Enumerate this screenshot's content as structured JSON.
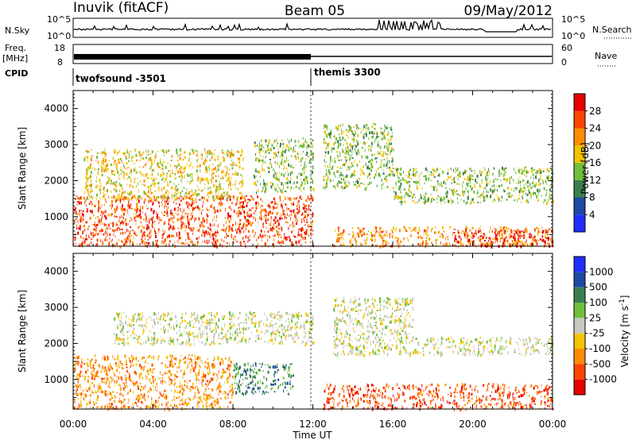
{
  "header": {
    "radar": "Inuvik (fitACF)",
    "beam": "Beam 05",
    "date": "09/May/2012"
  },
  "strips": {
    "nsky_label": "N.Sky",
    "nsky_ticks": [
      "10^5",
      "10^0"
    ],
    "nsearch_label": "N.Search",
    "nsearch_ticks": [
      "10^5",
      "10^0"
    ],
    "freq_label": "Freq.",
    "freq_unit": "[MHz]",
    "freq_ticks": [
      "18",
      "8"
    ],
    "nave_label": "Nave",
    "nave_ticks": [
      "60",
      "0"
    ],
    "cpid_label": "CPID",
    "cpid_segments": [
      {
        "name": "twofsound -3501",
        "start_hour": 0
      },
      {
        "name": "themis 3300",
        "start_hour": 12
      }
    ]
  },
  "chart_data": [
    {
      "type": "heatmap",
      "title": "",
      "quantity": "Power",
      "ylabel": "Slant Range [km]",
      "xlabel": "",
      "ylim": [
        180,
        4500
      ],
      "yticks": [
        1000,
        2000,
        3000,
        4000
      ],
      "xlim": [
        0,
        24
      ],
      "colorbar_label": "Power [dB]",
      "colorbar_ticks": [
        "4",
        "8",
        "12",
        "16",
        "20",
        "24",
        "28"
      ],
      "colorbar_colors": [
        "#1e2fff",
        "#1f4aa3",
        "#3a7f4f",
        "#6fbf3a",
        "#f2c400",
        "#ff8c00",
        "#ff4400",
        "#e60000"
      ],
      "regions": [
        {
          "t0": 0.0,
          "t1": 12.0,
          "r0": 200,
          "r1": 1600,
          "level": 24
        },
        {
          "t0": 0.5,
          "t1": 8.5,
          "r0": 1500,
          "r1": 2900,
          "level": 16
        },
        {
          "t0": 9.0,
          "t1": 12.0,
          "r0": 1700,
          "r1": 3200,
          "level": 12
        },
        {
          "t0": 12.5,
          "t1": 16.0,
          "r0": 1800,
          "r1": 3600,
          "level": 12
        },
        {
          "t0": 13.0,
          "t1": 24.0,
          "r0": 200,
          "r1": 750,
          "level": 20
        },
        {
          "t0": 19.0,
          "t1": 24.0,
          "r0": 200,
          "r1": 650,
          "level": 28
        },
        {
          "t0": 16.0,
          "t1": 24.0,
          "r0": 1400,
          "r1": 2400,
          "level": 12
        }
      ]
    },
    {
      "type": "heatmap",
      "title": "",
      "quantity": "Velocity",
      "ylabel": "Slant Range [km]",
      "xlabel": "Time UT",
      "ylim": [
        180,
        4500
      ],
      "yticks": [
        1000,
        2000,
        3000,
        4000
      ],
      "xlim": [
        0,
        24
      ],
      "xticks": [
        "00:00",
        "04:00",
        "08:00",
        "12:00",
        "16:00",
        "20:00",
        "00:00"
      ],
      "colorbar_label": "Velocity [m s^-1]",
      "colorbar_ticks": [
        "1000",
        "500",
        "100",
        "25",
        "-25",
        "-100",
        "-500",
        "-1000"
      ],
      "colorbar_colors": [
        "#1e2fff",
        "#1f4aa3",
        "#3a7f4f",
        "#6fbf3a",
        "#c8c8c0",
        "#f2c400",
        "#ff8c00",
        "#ff4400",
        "#e60000"
      ],
      "regions": [
        {
          "t0": 0.0,
          "t1": 8.0,
          "r0": 200,
          "r1": 1700,
          "level": -100
        },
        {
          "t0": 2.0,
          "t1": 12.0,
          "r0": 2000,
          "r1": 2900,
          "level": 0
        },
        {
          "t0": 8.0,
          "t1": 11.0,
          "r0": 600,
          "r1": 1500,
          "level": 500
        },
        {
          "t0": 12.5,
          "t1": 24.0,
          "r0": 200,
          "r1": 900,
          "level": -500
        },
        {
          "t0": 13.0,
          "t1": 17.0,
          "r0": 1700,
          "r1": 3300,
          "level": 0
        },
        {
          "t0": 17.0,
          "t1": 24.0,
          "r0": 1700,
          "r1": 2200,
          "level": 0
        }
      ]
    }
  ]
}
